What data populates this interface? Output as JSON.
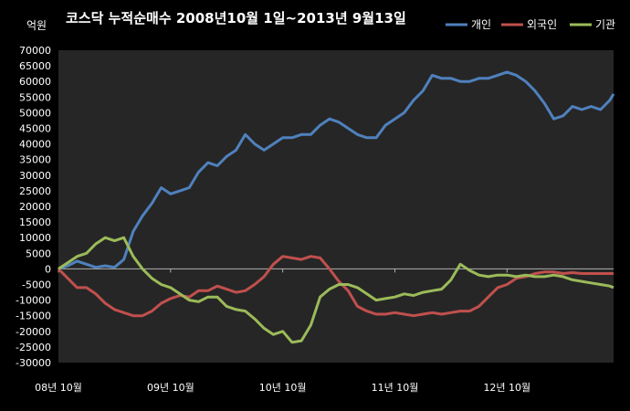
{
  "chart_data": {
    "type": "line",
    "title": "코스닥  누적순매수 2008년10월 1일~2013년 9월13일",
    "unit_label": "억원",
    "ylim": [
      -30000,
      70000
    ],
    "y_ticks": [
      70000,
      65000,
      60000,
      55000,
      50000,
      45000,
      40000,
      35000,
      30000,
      25000,
      20000,
      15000,
      10000,
      5000,
      0,
      -5000,
      -10000,
      -15000,
      -20000,
      -25000,
      -30000
    ],
    "x_ticks": [
      {
        "label": "08년 10월",
        "t": 0
      },
      {
        "label": "09년 10월",
        "t": 12
      },
      {
        "label": "10년 10월",
        "t": 24
      },
      {
        "label": "11년 10월",
        "t": 36
      },
      {
        "label": "12년 10월",
        "t": 48
      }
    ],
    "x_range": [
      0,
      59.4
    ],
    "x": [
      0,
      1,
      2,
      3,
      4,
      5,
      6,
      7,
      8,
      9,
      10,
      11,
      12,
      13,
      14,
      15,
      16,
      17,
      18,
      19,
      20,
      21,
      22,
      23,
      24,
      25,
      26,
      27,
      28,
      29,
      30,
      31,
      32,
      33,
      34,
      35,
      36,
      37,
      38,
      39,
      40,
      41,
      42,
      43,
      44,
      45,
      46,
      47,
      48,
      49,
      50,
      51,
      52,
      53,
      54,
      55,
      56,
      57,
      58,
      59,
      59.4
    ],
    "legend_position": "top-right",
    "series": [
      {
        "name": "개인",
        "color": "#4F81BD",
        "values": [
          0,
          1000,
          2500,
          1500,
          500,
          1000,
          500,
          3000,
          12000,
          17000,
          21000,
          26000,
          24000,
          25000,
          26000,
          31000,
          34000,
          33000,
          36000,
          38000,
          43000,
          40000,
          38000,
          40000,
          42000,
          42000,
          43000,
          43000,
          46000,
          48000,
          47000,
          45000,
          43000,
          42000,
          42000,
          46000,
          48000,
          50000,
          54000,
          57000,
          62000,
          61000,
          61000,
          60000,
          60000,
          61000,
          61000,
          62000,
          63000,
          62000,
          60000,
          57000,
          53000,
          48000,
          49000,
          52000,
          51000,
          52000,
          51000,
          54000,
          56000
        ]
      },
      {
        "name": "외국인",
        "color": "#C0504D",
        "values": [
          0,
          -3000,
          -6000,
          -6000,
          -8000,
          -11000,
          -13000,
          -14000,
          -15000,
          -15000,
          -13500,
          -11000,
          -9500,
          -8500,
          -9000,
          -7000,
          -7000,
          -5500,
          -6500,
          -7500,
          -7000,
          -5000,
          -2500,
          1500,
          4000,
          3500,
          3000,
          4000,
          3500,
          0,
          -4000,
          -7000,
          -12000,
          -13500,
          -14500,
          -14500,
          -14000,
          -14500,
          -15000,
          -14500,
          -14000,
          -14500,
          -14000,
          -13500,
          -13500,
          -12000,
          -9000,
          -6000,
          -5000,
          -3000,
          -2500,
          -1500,
          -1000,
          -1000,
          -1500,
          -1200,
          -1500,
          -1500,
          -1500,
          -1500,
          -1500
        ]
      },
      {
        "name": "기관",
        "color": "#9BBB59",
        "values": [
          0,
          2000,
          4000,
          5000,
          8000,
          10000,
          9000,
          10000,
          4000,
          0,
          -3000,
          -5000,
          -6000,
          -8000,
          -10000,
          -10500,
          -9000,
          -9000,
          -12000,
          -13000,
          -13500,
          -16000,
          -19000,
          -21000,
          -20000,
          -23500,
          -23000,
          -18000,
          -9000,
          -6500,
          -5000,
          -5000,
          -6000,
          -8000,
          -10000,
          -9500,
          -9000,
          -8000,
          -8500,
          -7500,
          -7000,
          -6500,
          -3500,
          1500,
          -500,
          -2000,
          -2500,
          -2000,
          -2000,
          -2500,
          -2000,
          -2500,
          -2500,
          -2000,
          -2500,
          -3500,
          -4000,
          -4500,
          -5000,
          -5500,
          -6000
        ]
      }
    ]
  }
}
